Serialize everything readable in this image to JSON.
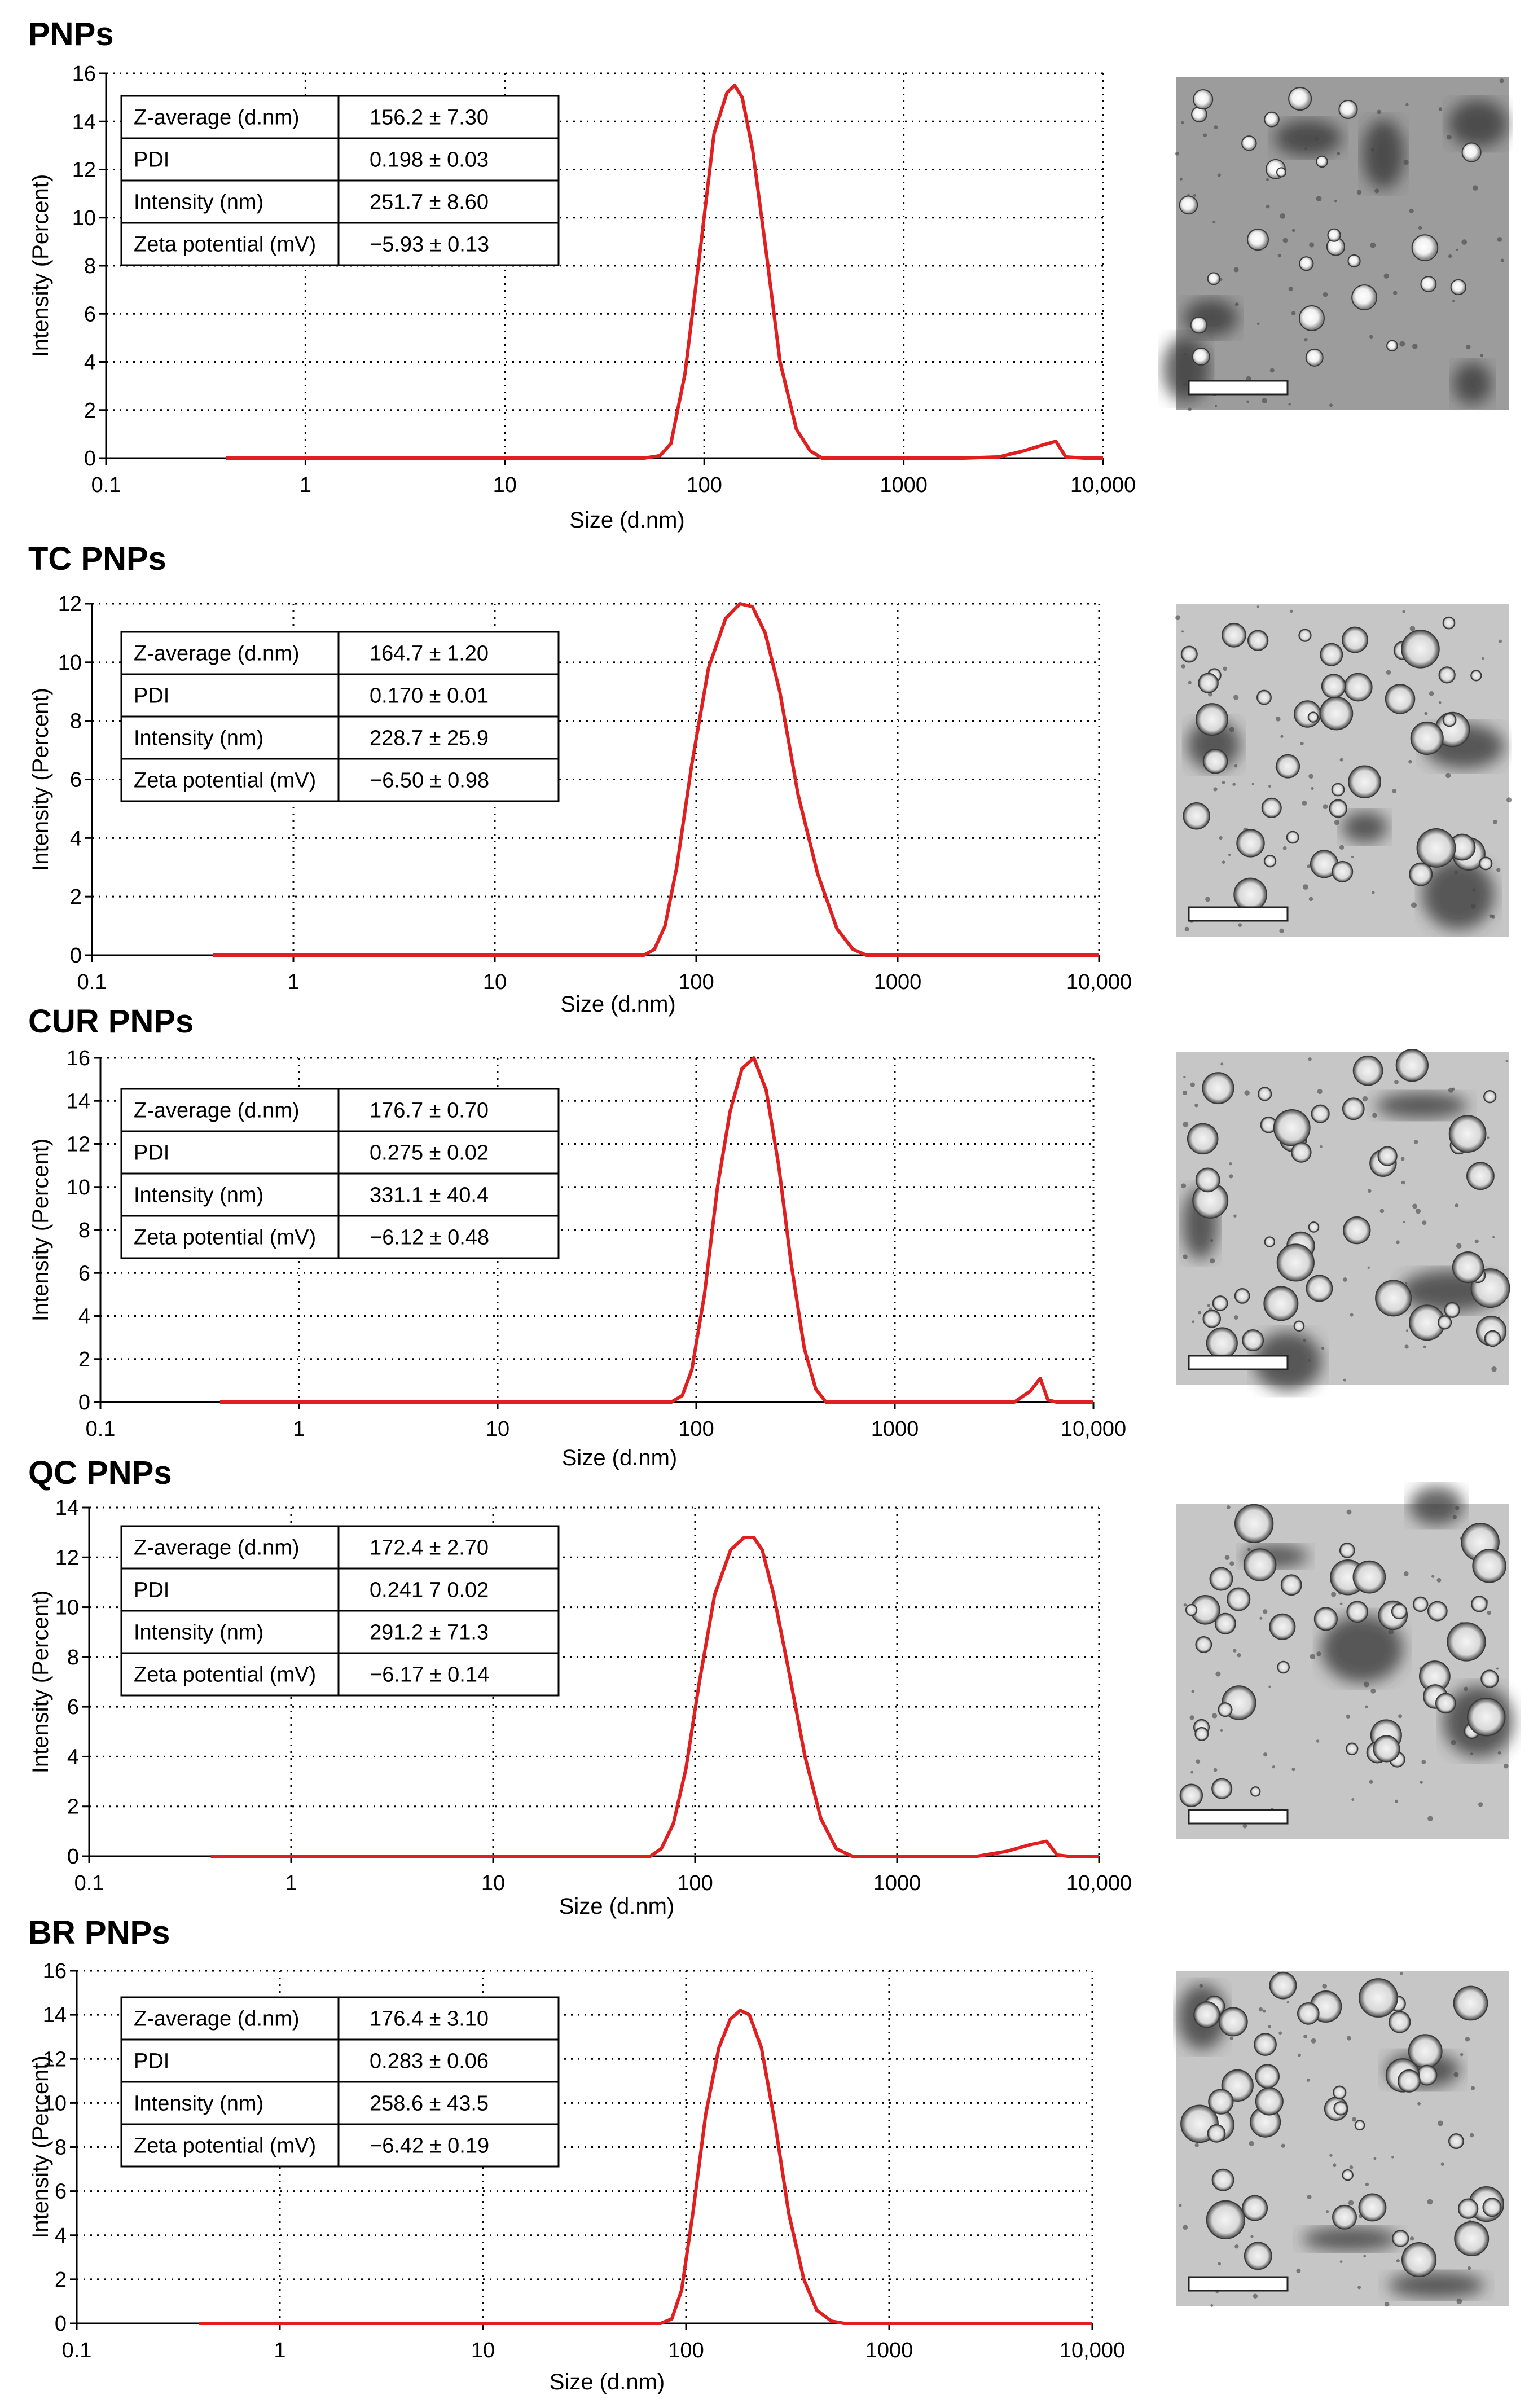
{
  "figure": {
    "panels": [
      {
        "title": "PNPs",
        "scale_bar": "",
        "table": [
          [
            "Z-average (d.nm)",
            "156.2 ± 7.30"
          ],
          [
            "PDI",
            "0.198 ± 0.03"
          ],
          [
            "Intensity (nm)",
            "251.7 ± 8.60"
          ],
          [
            "Zeta potential (mV)",
            "−5.93 ± 0.13"
          ]
        ]
      },
      {
        "title": "TC PNPs",
        "scale_bar": "",
        "table": [
          [
            "Z-average (d.nm)",
            "164.7 ± 1.20"
          ],
          [
            "PDI",
            "0.170 ± 0.01"
          ],
          [
            "Intensity (nm)",
            "228.7 ± 25.9"
          ],
          [
            "Zeta potential (mV)",
            "−6.50 ± 0.98"
          ]
        ]
      },
      {
        "title": "CUR PNPs",
        "scale_bar": "",
        "table": [
          [
            "Z-average (d.nm)",
            "176.7 ± 0.70"
          ],
          [
            "PDI",
            "0.275 ± 0.02"
          ],
          [
            "Intensity (nm)",
            "331.1 ± 40.4"
          ],
          [
            "Zeta potential (mV)",
            "−6.12 ± 0.48"
          ]
        ]
      },
      {
        "title": "QC PNPs",
        "scale_bar": "",
        "table": [
          [
            "Z-average (d.nm)",
            "172.4 ± 2.70"
          ],
          [
            "PDI",
            "0.241 7 0.02"
          ],
          [
            "Intensity (nm)",
            "291.2 ± 71.3"
          ],
          [
            "Zeta potential (mV)",
            "−6.17 ± 0.14"
          ]
        ]
      },
      {
        "title": "BR PNPs",
        "scale_bar": "",
        "table": [
          [
            "Z-average (d.nm)",
            "176.4 ± 3.10"
          ],
          [
            "PDI",
            "0.283 ± 0.06"
          ],
          [
            "Intensity (nm)",
            "258.6 ± 43.5"
          ],
          [
            "Zeta potential (mV)",
            "−6.42 ± 0.19"
          ]
        ]
      }
    ]
  },
  "chart_data": [
    {
      "type": "line",
      "title": "PNPs",
      "xlabel": "Size (d.nm)",
      "ylabel": "Intensity (Percent)",
      "x_scale": "log",
      "xlim": [
        0.1,
        10000
      ],
      "ylim": [
        0,
        16
      ],
      "x_ticks": [
        "0.1",
        "1",
        "10",
        "100",
        "1000",
        "10,000"
      ],
      "y_ticks": [
        "0",
        "2",
        "4",
        "6",
        "8",
        "10",
        "12",
        "14",
        "16"
      ],
      "series": [
        {
          "name": "Intensity",
          "x": [
            0.4,
            50,
            60,
            68,
            80,
            95,
            112,
            130,
            142,
            155,
            175,
            205,
            240,
            290,
            340,
            390,
            500,
            1000,
            2000,
            3000,
            4000,
            5000,
            5800,
            6500,
            8000,
            10000
          ],
          "y": [
            0,
            0,
            0.1,
            0.6,
            3.5,
            8.5,
            13.5,
            15.2,
            15.5,
            15.0,
            12.8,
            8.5,
            4.0,
            1.2,
            0.3,
            0,
            0,
            0,
            0,
            0.05,
            0.3,
            0.55,
            0.7,
            0.05,
            0,
            0
          ]
        }
      ]
    },
    {
      "type": "line",
      "title": "TC PNPs",
      "xlabel": "Size (d.nm)",
      "ylabel": "Intensity (Percent)",
      "x_scale": "log",
      "xlim": [
        0.1,
        10000
      ],
      "ylim": [
        0,
        12
      ],
      "x_ticks": [
        "0.1",
        "1",
        "10",
        "100",
        "1000",
        "10,000"
      ],
      "y_ticks": [
        "0",
        "2",
        "4",
        "6",
        "8",
        "10",
        "12"
      ],
      "series": [
        {
          "name": "Intensity",
          "x": [
            0.4,
            55,
            62,
            70,
            80,
            95,
            115,
            140,
            165,
            190,
            220,
            260,
            320,
            400,
            500,
            600,
            700,
            1000,
            10000
          ],
          "y": [
            0,
            0,
            0.2,
            1.0,
            3.0,
            6.5,
            9.8,
            11.5,
            12.0,
            11.9,
            11.0,
            9.0,
            5.5,
            2.8,
            0.9,
            0.2,
            0,
            0,
            0
          ]
        }
      ]
    },
    {
      "type": "line",
      "title": "CUR PNPs",
      "xlabel": "Size (d.nm)",
      "ylabel": "Intensity (Percent)",
      "x_scale": "log",
      "xlim": [
        0.1,
        10000
      ],
      "ylim": [
        0,
        16
      ],
      "x_ticks": [
        "0.1",
        "1",
        "10",
        "100",
        "1000",
        "10,000"
      ],
      "y_ticks": [
        "0",
        "2",
        "4",
        "6",
        "8",
        "10",
        "12",
        "14",
        "16"
      ],
      "series": [
        {
          "name": "Intensity",
          "x": [
            0.4,
            75,
            85,
            95,
            110,
            128,
            148,
            170,
            195,
            225,
            260,
            300,
            350,
            400,
            450,
            1000,
            4000,
            4800,
            5400,
            5900,
            6500,
            10000
          ],
          "y": [
            0,
            0,
            0.3,
            1.5,
            5.0,
            10.0,
            13.5,
            15.5,
            16.0,
            14.5,
            11.0,
            6.5,
            2.5,
            0.6,
            0,
            0,
            0,
            0.5,
            1.1,
            0.1,
            0,
            0
          ]
        }
      ]
    },
    {
      "type": "line",
      "title": "QC PNPs",
      "xlabel": "Size (d.nm)",
      "ylabel": "Intensity (Percent)",
      "x_scale": "log",
      "xlim": [
        0.1,
        10000
      ],
      "ylim": [
        0,
        14
      ],
      "x_ticks": [
        "0.1",
        "1",
        "10",
        "100",
        "1000",
        "10,000"
      ],
      "y_ticks": [
        "0",
        "2",
        "4",
        "6",
        "8",
        "10",
        "12",
        "14"
      ],
      "series": [
        {
          "name": "Intensity",
          "x": [
            0.4,
            60,
            68,
            78,
            90,
            105,
            125,
            150,
            175,
            195,
            215,
            245,
            290,
            350,
            420,
            500,
            600,
            700,
            1000,
            2500,
            3500,
            4500,
            5500,
            6200,
            7000,
            10000
          ],
          "y": [
            0,
            0,
            0.3,
            1.3,
            3.5,
            7.0,
            10.5,
            12.3,
            12.8,
            12.8,
            12.3,
            10.5,
            7.5,
            4.0,
            1.5,
            0.3,
            0,
            0,
            0,
            0,
            0.2,
            0.45,
            0.6,
            0.05,
            0,
            0
          ]
        }
      ]
    },
    {
      "type": "line",
      "title": "BR PNPs",
      "xlabel": "Size (d.nm)",
      "ylabel": "Intensity (Percent)",
      "x_scale": "log",
      "xlim": [
        0.1,
        10000
      ],
      "ylim": [
        0,
        16
      ],
      "x_ticks": [
        "0.1",
        "1",
        "10",
        "100",
        "1000",
        "10,000"
      ],
      "y_ticks": [
        "0",
        "2",
        "4",
        "6",
        "8",
        "10",
        "12",
        "14",
        "16"
      ],
      "series": [
        {
          "name": "Intensity",
          "x": [
            0.4,
            75,
            85,
            95,
            108,
            125,
            145,
            165,
            185,
            205,
            235,
            275,
            320,
            380,
            440,
            520,
            600,
            1000,
            10000
          ],
          "y": [
            0,
            0,
            0.2,
            1.5,
            5.0,
            9.5,
            12.5,
            13.8,
            14.2,
            14.0,
            12.5,
            9.0,
            5.0,
            2.0,
            0.6,
            0.1,
            0,
            0,
            0
          ]
        }
      ]
    }
  ]
}
